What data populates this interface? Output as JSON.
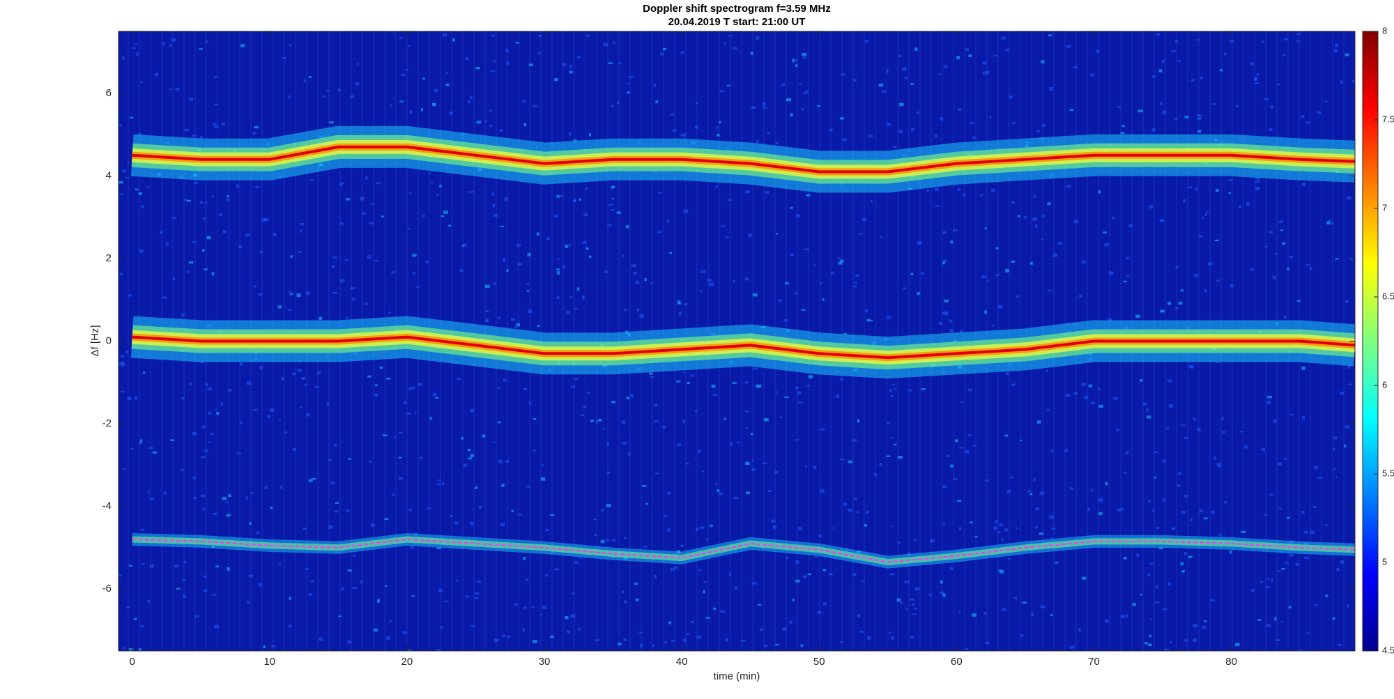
{
  "chart_data": {
    "type": "spectrogram",
    "title": "Doppler shift spectrogram f=3.59 MHz",
    "subtitle": "20.04.2019   T start: 21:00 UT",
    "x_label": "time (min)",
    "y_label": "Δf [Hz]",
    "xlim": [
      -1,
      89
    ],
    "ylim": [
      -7.5,
      7.5
    ],
    "xticks": [
      0,
      10,
      20,
      30,
      40,
      50,
      60,
      70,
      80
    ],
    "yticks": [
      -6,
      -4,
      -2,
      0,
      2,
      4,
      6
    ],
    "colormap": "jet",
    "clim": [
      4.5,
      8
    ],
    "cticks": [
      4.5,
      5,
      5.5,
      6,
      6.5,
      7,
      7.5,
      8
    ],
    "x": [
      0,
      5,
      10,
      15,
      20,
      25,
      30,
      35,
      40,
      45,
      50,
      55,
      60,
      65,
      70,
      75,
      80,
      85,
      89
    ],
    "series": [
      {
        "color": "#e00000",
        "values": [
          4.5,
          4.4,
          4.4,
          4.7,
          4.7,
          4.5,
          4.3,
          4.4,
          4.4,
          4.3,
          4.1,
          4.1,
          4.3,
          4.4,
          4.5,
          4.5,
          4.5,
          4.4,
          4.35
        ]
      },
      {
        "color": "#e00000",
        "values": [
          0.1,
          0,
          0,
          0,
          0.1,
          -0.1,
          -0.3,
          -0.3,
          -0.2,
          -0.1,
          -0.3,
          -0.4,
          -0.3,
          -0.2,
          0,
          0,
          0,
          0,
          -0.1
        ]
      },
      {
        "color": "#ff33ff",
        "values": [
          -4.8,
          -4.85,
          -4.95,
          -5.0,
          -4.8,
          -4.9,
          -5.0,
          -5.15,
          -5.25,
          -4.9,
          -5.05,
          -5.35,
          -5.2,
          -5.0,
          -4.85,
          -4.85,
          -4.9,
          -5.0,
          -5.05
        ]
      }
    ]
  }
}
